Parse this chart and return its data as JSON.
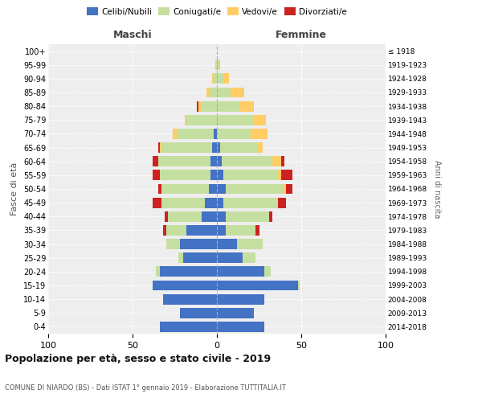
{
  "age_groups": [
    "0-4",
    "5-9",
    "10-14",
    "15-19",
    "20-24",
    "25-29",
    "30-34",
    "35-39",
    "40-44",
    "45-49",
    "50-54",
    "55-59",
    "60-64",
    "65-69",
    "70-74",
    "75-79",
    "80-84",
    "85-89",
    "90-94",
    "95-99",
    "100+"
  ],
  "birth_years": [
    "2014-2018",
    "2009-2013",
    "2004-2008",
    "1999-2003",
    "1994-1998",
    "1989-1993",
    "1984-1988",
    "1979-1983",
    "1974-1978",
    "1969-1973",
    "1964-1968",
    "1959-1963",
    "1954-1958",
    "1949-1953",
    "1944-1948",
    "1939-1943",
    "1934-1938",
    "1929-1933",
    "1924-1928",
    "1919-1923",
    "≤ 1918"
  ],
  "males": {
    "celibi": [
      34,
      22,
      32,
      38,
      34,
      20,
      22,
      18,
      9,
      7,
      5,
      4,
      4,
      3,
      2,
      0,
      0,
      0,
      0,
      0,
      0
    ],
    "coniugati": [
      0,
      0,
      0,
      0,
      2,
      3,
      8,
      12,
      20,
      26,
      28,
      30,
      31,
      30,
      22,
      18,
      9,
      5,
      2,
      1,
      0
    ],
    "vedovi": [
      0,
      0,
      0,
      0,
      0,
      0,
      0,
      0,
      0,
      0,
      0,
      0,
      0,
      1,
      2,
      1,
      2,
      1,
      1,
      0,
      0
    ],
    "divorziati": [
      0,
      0,
      0,
      0,
      0,
      0,
      0,
      2,
      2,
      5,
      2,
      4,
      3,
      1,
      0,
      0,
      1,
      0,
      0,
      0,
      0
    ]
  },
  "females": {
    "nubili": [
      28,
      22,
      28,
      48,
      28,
      15,
      12,
      5,
      5,
      4,
      5,
      4,
      3,
      2,
      0,
      0,
      0,
      0,
      0,
      0,
      0
    ],
    "coniugate": [
      0,
      0,
      0,
      1,
      4,
      8,
      15,
      18,
      26,
      32,
      34,
      32,
      30,
      22,
      20,
      22,
      14,
      8,
      4,
      1,
      0
    ],
    "vedove": [
      0,
      0,
      0,
      0,
      0,
      0,
      0,
      0,
      0,
      0,
      2,
      2,
      5,
      3,
      10,
      7,
      8,
      8,
      3,
      1,
      0
    ],
    "divorziate": [
      0,
      0,
      0,
      0,
      0,
      0,
      0,
      2,
      2,
      5,
      4,
      7,
      2,
      0,
      0,
      0,
      0,
      0,
      0,
      0,
      0
    ]
  },
  "colors": {
    "celibi": "#4472C4",
    "coniugati": "#C5DFA0",
    "vedovi": "#FFCC66",
    "divorziati": "#CC2222"
  },
  "xlim": 100,
  "title": "Popolazione per età, sesso e stato civile - 2019",
  "subtitle": "COMUNE DI NIARDO (BS) - Dati ISTAT 1° gennaio 2019 - Elaborazione TUTTITALIA.IT",
  "legend_labels": [
    "Celibi/Nubili",
    "Coniugati/e",
    "Vedovi/e",
    "Divorziati/e"
  ],
  "label_maschi": "Maschi",
  "label_femmine": "Femmine",
  "ylabel_left": "Fasce di età",
  "ylabel_right": "Anni di nascita",
  "bar_height": 0.75
}
